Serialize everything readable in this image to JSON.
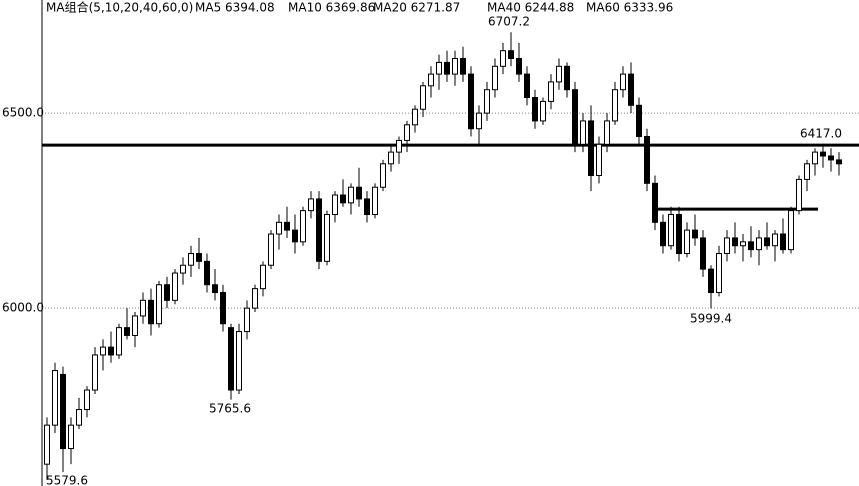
{
  "chart_data": {
    "type": "candlestick",
    "legend": [
      "MA组合(5,10,20,40,60,0)",
      "MA5 6394.08",
      "MA10 6369.86",
      "MA20 6271.87",
      "MA40 6244.88",
      "MA60 6333.96"
    ],
    "ylim": [
      5544,
      6790
    ],
    "yticks": [
      {
        "value": 6500,
        "label": "6500.0"
      },
      {
        "value": 6000,
        "label": "6000.0"
      }
    ],
    "grid": true,
    "up_color": "#ffffff",
    "down_color": "#000000",
    "reference_lines": [
      6418,
      6254
    ],
    "annotations": [
      "6707.2",
      "5765.6",
      "5999.4",
      "6417.0",
      "5579.6"
    ],
    "ohlc": [
      [
        5600,
        5720,
        5560,
        5700
      ],
      [
        5700,
        5860,
        5680,
        5840
      ],
      [
        5830,
        5850,
        5579.6,
        5640
      ],
      [
        5640,
        5720,
        5600,
        5700
      ],
      [
        5700,
        5770,
        5690,
        5740
      ],
      [
        5740,
        5800,
        5720,
        5790
      ],
      [
        5790,
        5900,
        5780,
        5880
      ],
      [
        5880,
        5920,
        5840,
        5900
      ],
      [
        5900,
        5940,
        5860,
        5880
      ],
      [
        5880,
        5960,
        5870,
        5950
      ],
      [
        5950,
        6000,
        5920,
        5930
      ],
      [
        5930,
        5990,
        5900,
        5980
      ],
      [
        5980,
        6040,
        5960,
        6020
      ],
      [
        6020,
        6050,
        5930,
        5960
      ],
      [
        5960,
        6070,
        5950,
        6060
      ],
      [
        6060,
        6080,
        6000,
        6020
      ],
      [
        6020,
        6100,
        6010,
        6090
      ],
      [
        6090,
        6130,
        6060,
        6110
      ],
      [
        6110,
        6160,
        6080,
        6140
      ],
      [
        6140,
        6180,
        6100,
        6120
      ],
      [
        6120,
        6140,
        6040,
        6060
      ],
      [
        6060,
        6100,
        6020,
        6040
      ],
      [
        6040,
        6060,
        5940,
        5960
      ],
      [
        5950,
        5960,
        5765.6,
        5790
      ],
      [
        5790,
        5960,
        5780,
        5940
      ],
      [
        5940,
        6020,
        5920,
        6000
      ],
      [
        6000,
        6060,
        5990,
        6050
      ],
      [
        6050,
        6120,
        6030,
        6110
      ],
      [
        6110,
        6200,
        6100,
        6190
      ],
      [
        6190,
        6240,
        6150,
        6220
      ],
      [
        6220,
        6260,
        6180,
        6200
      ],
      [
        6200,
        6240,
        6140,
        6170
      ],
      [
        6170,
        6260,
        6160,
        6250
      ],
      [
        6250,
        6300,
        6230,
        6280
      ],
      [
        6280,
        6300,
        6100,
        6120
      ],
      [
        6120,
        6250,
        6110,
        6240
      ],
      [
        6240,
        6300,
        6220,
        6290
      ],
      [
        6290,
        6330,
        6260,
        6270
      ],
      [
        6270,
        6320,
        6240,
        6310
      ],
      [
        6310,
        6360,
        6260,
        6280
      ],
      [
        6280,
        6300,
        6220,
        6240
      ],
      [
        6240,
        6320,
        6230,
        6310
      ],
      [
        6310,
        6380,
        6300,
        6370
      ],
      [
        6370,
        6420,
        6350,
        6400
      ],
      [
        6400,
        6440,
        6370,
        6430
      ],
      [
        6430,
        6480,
        6400,
        6470
      ],
      [
        6470,
        6520,
        6450,
        6510
      ],
      [
        6510,
        6580,
        6490,
        6570
      ],
      [
        6570,
        6620,
        6540,
        6600
      ],
      [
        6600,
        6650,
        6560,
        6630
      ],
      [
        6630,
        6660,
        6580,
        6600
      ],
      [
        6600,
        6660,
        6570,
        6640
      ],
      [
        6640,
        6670,
        6580,
        6600
      ],
      [
        6600,
        6620,
        6440,
        6460
      ],
      [
        6460,
        6520,
        6420,
        6500
      ],
      [
        6500,
        6580,
        6480,
        6560
      ],
      [
        6560,
        6640,
        6540,
        6620
      ],
      [
        6620,
        6680,
        6600,
        6660
      ],
      [
        6660,
        6707.2,
        6620,
        6640
      ],
      [
        6640,
        6680,
        6580,
        6600
      ],
      [
        6600,
        6620,
        6520,
        6540
      ],
      [
        6540,
        6560,
        6460,
        6480
      ],
      [
        6480,
        6540,
        6470,
        6530
      ],
      [
        6530,
        6600,
        6510,
        6580
      ],
      [
        6580,
        6640,
        6560,
        6620
      ],
      [
        6620,
        6630,
        6540,
        6560
      ],
      [
        6560,
        6580,
        6400,
        6420
      ],
      [
        6420,
        6500,
        6400,
        6480
      ],
      [
        6480,
        6520,
        6300,
        6340
      ],
      [
        6340,
        6440,
        6320,
        6420
      ],
      [
        6420,
        6500,
        6400,
        6480
      ],
      [
        6480,
        6580,
        6470,
        6560
      ],
      [
        6560,
        6620,
        6540,
        6600
      ],
      [
        6600,
        6630,
        6500,
        6520
      ],
      [
        6520,
        6540,
        6420,
        6440
      ],
      [
        6440,
        6460,
        6300,
        6320
      ],
      [
        6320,
        6340,
        6200,
        6220
      ],
      [
        6220,
        6240,
        6140,
        6160
      ],
      [
        6160,
        6260,
        6150,
        6240
      ],
      [
        6240,
        6260,
        6120,
        6140
      ],
      [
        6140,
        6220,
        6130,
        6200
      ],
      [
        6200,
        6240,
        6160,
        6180
      ],
      [
        6180,
        6200,
        6080,
        6100
      ],
      [
        6100,
        6110,
        5999.4,
        6040
      ],
      [
        6040,
        6160,
        6030,
        6140
      ],
      [
        6140,
        6200,
        6120,
        6180
      ],
      [
        6180,
        6220,
        6140,
        6160
      ],
      [
        6160,
        6190,
        6120,
        6170
      ],
      [
        6170,
        6210,
        6130,
        6150
      ],
      [
        6150,
        6200,
        6110,
        6180
      ],
      [
        6180,
        6220,
        6150,
        6160
      ],
      [
        6160,
        6200,
        6120,
        6190
      ],
      [
        6190,
        6230,
        6140,
        6150
      ],
      [
        6150,
        6260,
        6140,
        6250
      ],
      [
        6250,
        6340,
        6240,
        6330
      ],
      [
        6330,
        6380,
        6300,
        6370
      ],
      [
        6370,
        6410,
        6340,
        6400
      ],
      [
        6400,
        6417,
        6360,
        6390
      ],
      [
        6390,
        6410,
        6350,
        6380
      ],
      [
        6380,
        6400,
        6340,
        6370
      ]
    ]
  }
}
